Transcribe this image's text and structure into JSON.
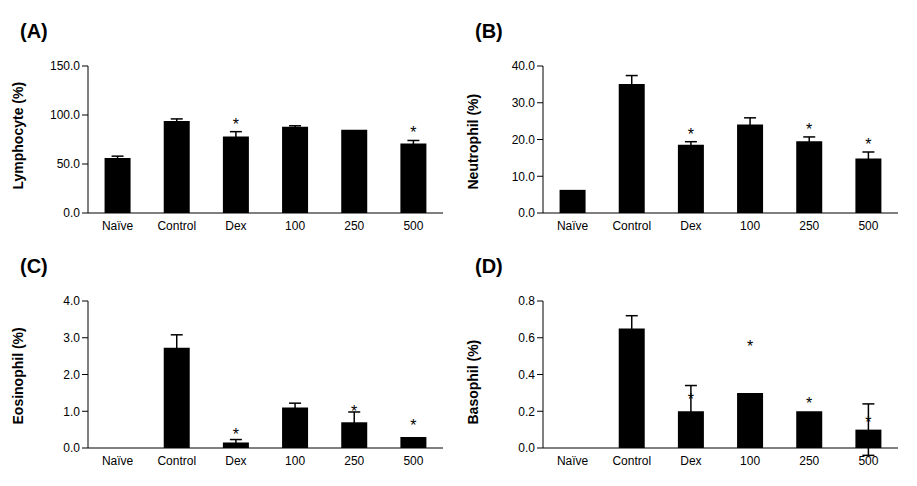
{
  "chart_data": [
    {
      "type": "bar",
      "panel": "(A)",
      "y_label": "Lymphocyte (%)",
      "categories": [
        "Naïve",
        "Control",
        "Dex",
        "100",
        "250",
        "500"
      ],
      "values": [
        56,
        94,
        78,
        88,
        85,
        71
      ],
      "errors": [
        2,
        2,
        5,
        1,
        0,
        3
      ],
      "color": "#000000",
      "ylim": [
        0,
        150
      ],
      "yticks": [
        {
          "value": 0,
          "label": "0.0"
        },
        {
          "value": 50,
          "label": "50.0"
        },
        {
          "value": 100,
          "label": "100.0"
        },
        {
          "value": 150,
          "label": "150.0"
        }
      ],
      "annotations": [
        {
          "category": "Dex",
          "text": "*"
        },
        {
          "category": "500",
          "text": "*"
        }
      ]
    },
    {
      "type": "bar",
      "panel": "(B)",
      "y_label": "Neutrophil  (%)",
      "categories": [
        "Naïve",
        "Control",
        "Dex",
        "100",
        "250",
        "500"
      ],
      "values": [
        6.3,
        35.1,
        18.6,
        24.1,
        19.5,
        14.8
      ],
      "errors": [
        0,
        2.3,
        0.8,
        1.8,
        1.2,
        1.8
      ],
      "color": "#000000",
      "ylim": [
        0,
        40
      ],
      "yticks": [
        {
          "value": 0,
          "label": "0.0"
        },
        {
          "value": 10,
          "label": "10.0"
        },
        {
          "value": 20,
          "label": "20.0"
        },
        {
          "value": 30,
          "label": "30.0"
        },
        {
          "value": 40,
          "label": "40.0"
        }
      ],
      "annotations": [
        {
          "category": "Dex",
          "text": "*"
        },
        {
          "category": "250",
          "text": "*"
        },
        {
          "category": "500",
          "text": "*"
        }
      ]
    },
    {
      "type": "bar",
      "panel": "(C)",
      "y_label": "Eosinophil  (%)",
      "categories": [
        "Naïve",
        "Control",
        "Dex",
        "100",
        "250",
        "500"
      ],
      "values": [
        0,
        2.73,
        0.15,
        1.1,
        0.7,
        0.3
      ],
      "errors": [
        0,
        0.35,
        0.08,
        0.12,
        0.28,
        0
      ],
      "color": "#000000",
      "ylim": [
        0,
        4
      ],
      "yticks": [
        {
          "value": 0,
          "label": "0.0"
        },
        {
          "value": 1,
          "label": "1.0"
        },
        {
          "value": 2,
          "label": "2.0"
        },
        {
          "value": 3,
          "label": "3.0"
        },
        {
          "value": 4,
          "label": "4.0"
        }
      ],
      "annotations": [
        {
          "category": "Dex",
          "text": "*"
        },
        {
          "category": "250",
          "text": "*"
        },
        {
          "category": "500",
          "text": "*"
        }
      ]
    },
    {
      "type": "bar",
      "panel": "(D)",
      "y_label": "Basophil  (%)",
      "categories": [
        "Naïve",
        "Control",
        "Dex",
        "100",
        "250",
        "500"
      ],
      "values": [
        0,
        0.65,
        0.2,
        0.3,
        0.2,
        0.1
      ],
      "errors": [
        0,
        0.07,
        0.14,
        0,
        0,
        0.14
      ],
      "color": "#000000",
      "ylim": [
        0,
        0.8
      ],
      "yticks": [
        {
          "value": 0,
          "label": "0.0"
        },
        {
          "value": 0.2,
          "label": "0.2"
        },
        {
          "value": 0.4,
          "label": "0.4"
        },
        {
          "value": 0.6,
          "label": "0.6"
        },
        {
          "value": 0.8,
          "label": "0.8"
        }
      ],
      "annotations": [
        {
          "category": "Dex",
          "text": "*"
        },
        {
          "category": "100",
          "text": "*"
        },
        {
          "category": "250",
          "text": "*"
        },
        {
          "category": "500",
          "text": "*"
        }
      ]
    }
  ]
}
